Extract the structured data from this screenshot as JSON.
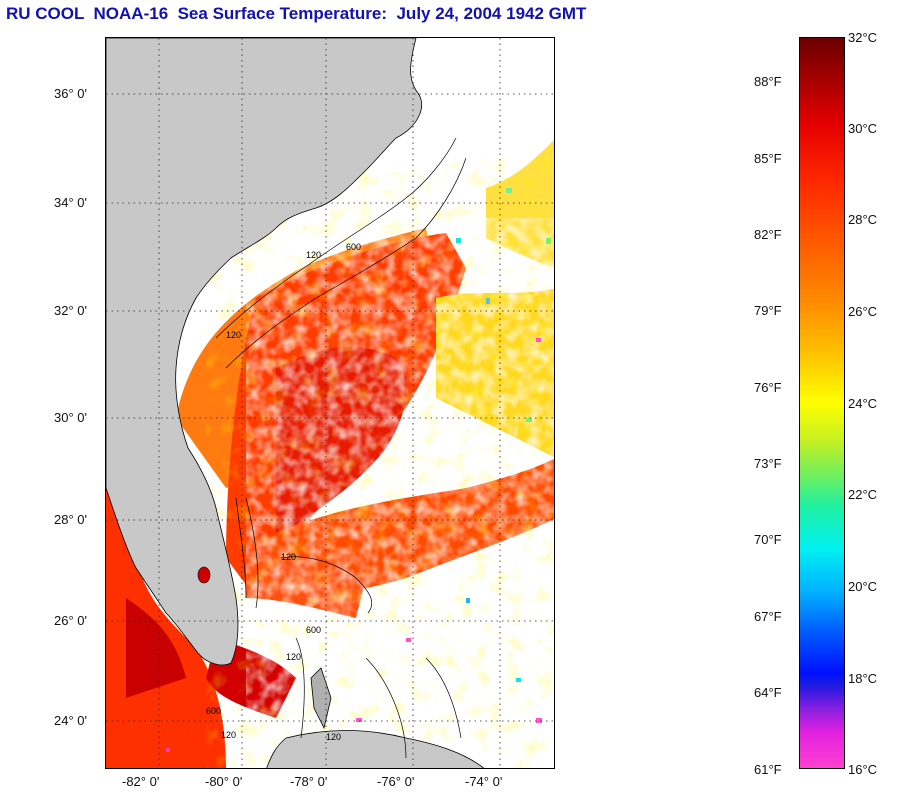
{
  "title": "RU COOL  NOAA-16  Sea Surface Temperature:  July 24, 2004 1942 GMT",
  "map": {
    "lat_labels": [
      "36° 0'",
      "34° 0'",
      "32° 0'",
      "30° 0'",
      "28° 0'",
      "26° 0'",
      "24° 0'"
    ],
    "lon_labels": [
      "-82° 0'",
      "-80° 0'",
      "-78° 0'",
      "-76° 0'",
      "-74° 0'"
    ],
    "contour_labels": [
      "120",
      "600",
      "120",
      "120",
      "600",
      "120",
      "120",
      "600",
      "120"
    ],
    "colors": {
      "land": "#c8c8c8",
      "cloud": "#ffffff",
      "warm_water": "#ff4a00",
      "hot_water": "#cc0000",
      "cool_water": "#ffe600"
    }
  },
  "colorbar": {
    "celsius": [
      "32°C",
      "30°C",
      "28°C",
      "26°C",
      "24°C",
      "22°C",
      "20°C",
      "18°C",
      "16°C"
    ],
    "fahrenheit": [
      "88°F",
      "85°F",
      "82°F",
      "79°F",
      "76°F",
      "73°F",
      "70°F",
      "67°F",
      "64°F",
      "61°F"
    ]
  }
}
